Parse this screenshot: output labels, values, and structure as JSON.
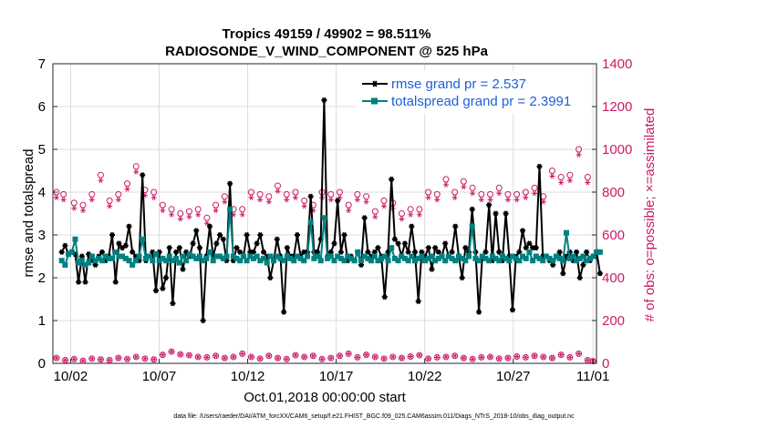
{
  "chart_data": {
    "type": "line",
    "title": "Tropics 49159 / 49902 = 98.511%",
    "subtitle": "RADIOSONDE_V_WIND_COMPONENT @ 525 hPa",
    "xlabel": "Oct.01,2018 00:00:00 start",
    "ylabel_left": "rmse and totalspread",
    "ylabel_right": "# of obs: o=possible; ×=assimilated",
    "ylim_left": [
      0,
      7
    ],
    "ylim_right": [
      0,
      1400
    ],
    "yticks_left": [
      "0",
      "1",
      "2",
      "3",
      "4",
      "5",
      "6",
      "7"
    ],
    "yticks_right": [
      "0",
      "200",
      "400",
      "600",
      "800",
      "1000",
      "1200",
      "1400"
    ],
    "xlim": [
      0.5,
      31.2
    ],
    "x_ticks": [
      {
        "x": 1.5,
        "label": "10/02"
      },
      {
        "x": 6.5,
        "label": "10/07"
      },
      {
        "x": 11.5,
        "label": "10/12"
      },
      {
        "x": 16.5,
        "label": "10/17"
      },
      {
        "x": 21.5,
        "label": "10/22"
      },
      {
        "x": 26.5,
        "label": "10/27"
      },
      {
        "x": 31.0,
        "label": "11/01"
      }
    ],
    "legend": {
      "position": "top-right",
      "entries": [
        "rmse grand pr = 2.537",
        "totalspread grand pr = 2.3991"
      ]
    },
    "colors": {
      "rmse": "#000000",
      "spread": "#008080",
      "obs": "#cc1a66",
      "legend_text": "#1f5fd6",
      "grid": "#dcdcdc"
    },
    "series": [
      {
        "name": "rmse",
        "label": "rmse grand pr = 2.537",
        "values": [
          2.6,
          2.75,
          2.55,
          2.6,
          2.55,
          1.9,
          2.5,
          1.9,
          2.55,
          2.4,
          2.3,
          2.5,
          2.6,
          2.4,
          2.5,
          3.0,
          1.9,
          2.8,
          2.7,
          2.75,
          3.2,
          2.6,
          2.5,
          2.4,
          4.4,
          2.4,
          2.5,
          2.6,
          1.7,
          2.6,
          1.75,
          2.0,
          2.7,
          1.4,
          2.6,
          2.7,
          2.2,
          2.6,
          2.5,
          2.8,
          3.1,
          2.7,
          1.0,
          2.5,
          3.2,
          2.5,
          2.8,
          3.0,
          2.9,
          2.4,
          4.2,
          2.4,
          2.7,
          2.6,
          2.5,
          3.0,
          2.6,
          2.6,
          2.8,
          3.0,
          2.6,
          2.5,
          2.0,
          2.4,
          2.9,
          2.5,
          1.2,
          2.7,
          2.5,
          2.5,
          3.0,
          2.5,
          2.6,
          2.6,
          3.9,
          2.6,
          2.6,
          2.9,
          6.15,
          2.5,
          2.6,
          2.8,
          3.8,
          2.6,
          3.0,
          2.4,
          2.5,
          2.4,
          2.6,
          2.3,
          3.4,
          2.6,
          2.5,
          2.6,
          2.7,
          2.5,
          1.55,
          2.6,
          4.3,
          2.9,
          2.8,
          2.5,
          2.8,
          2.6,
          3.2,
          2.6,
          1.45,
          2.6,
          2.5,
          2.7,
          2.2,
          2.7,
          2.6,
          2.5,
          2.8,
          2.5,
          2.6,
          3.2,
          2.5,
          2.0,
          2.7,
          2.6,
          3.6,
          2.6,
          1.2,
          2.5,
          2.6,
          3.7,
          2.4,
          3.5,
          2.6,
          2.4,
          3.5,
          2.5,
          1.25,
          2.5,
          2.6,
          3.1,
          2.7,
          2.8,
          2.7,
          2.7,
          4.6,
          2.5,
          2.5,
          2.4,
          2.3,
          2.5,
          2.6,
          2.1,
          2.5,
          2.6,
          2.4,
          2.6,
          2.0,
          2.3,
          2.6,
          2.4,
          2.5,
          2.6,
          2.1
        ]
      },
      {
        "name": "totalspread",
        "label": "totalspread grand pr = 2.3991",
        "values": [
          2.4,
          2.3,
          2.55,
          2.6,
          2.9,
          2.35,
          2.4,
          2.3,
          2.35,
          2.5,
          2.4,
          2.45,
          2.4,
          2.5,
          2.45,
          2.45,
          2.6,
          2.5,
          2.5,
          2.45,
          2.4,
          2.3,
          2.4,
          2.5,
          2.9,
          2.45,
          2.5,
          2.4,
          2.55,
          2.4,
          2.45,
          2.4,
          2.5,
          2.4,
          2.45,
          2.35,
          2.5,
          2.4,
          2.55,
          2.5,
          2.45,
          2.5,
          2.4,
          2.45,
          2.6,
          2.4,
          2.5,
          2.5,
          2.45,
          2.5,
          3.6,
          2.5,
          2.45,
          2.4,
          2.5,
          2.4,
          2.5,
          2.45,
          2.5,
          2.4,
          2.45,
          2.35,
          2.5,
          2.4,
          2.5,
          2.45,
          2.4,
          2.5,
          2.45,
          2.4,
          2.5,
          2.45,
          2.4,
          2.5,
          3.3,
          2.45,
          2.5,
          2.4,
          3.4,
          2.45,
          2.5,
          2.4,
          2.5,
          2.45,
          2.4,
          2.5,
          2.45,
          2.4,
          2.6,
          2.4,
          2.5,
          2.45,
          2.4,
          2.5,
          2.4,
          2.45,
          2.5,
          2.4,
          2.7,
          2.45,
          2.4,
          2.5,
          2.45,
          2.4,
          2.5,
          2.4,
          2.45,
          2.5,
          2.4,
          2.45,
          2.5,
          2.4,
          2.45,
          2.5,
          2.4,
          2.5,
          2.45,
          2.4,
          2.5,
          2.45,
          2.4,
          2.5,
          3.2,
          2.45,
          2.4,
          2.5,
          2.45,
          2.4,
          2.5,
          2.45,
          2.4,
          2.5,
          2.45,
          2.4,
          2.5,
          2.45,
          2.4,
          2.5,
          2.45,
          2.6,
          2.4,
          2.5,
          2.45,
          2.4,
          2.5,
          2.45,
          2.4,
          2.5,
          2.45,
          2.4,
          3.05,
          2.45,
          2.5,
          2.4,
          2.45,
          2.5,
          2.4,
          2.45,
          2.5,
          2.6,
          2.6
        ]
      }
    ],
    "obs_possible_high": [
      {
        "x": 0.7,
        "y": 800
      },
      {
        "x": 1.1,
        "y": 790
      },
      {
        "x": 1.7,
        "y": 750
      },
      {
        "x": 2.2,
        "y": 740
      },
      {
        "x": 2.7,
        "y": 790
      },
      {
        "x": 3.2,
        "y": 880
      },
      {
        "x": 3.7,
        "y": 760
      },
      {
        "x": 4.2,
        "y": 790
      },
      {
        "x": 4.7,
        "y": 840
      },
      {
        "x": 5.2,
        "y": 920
      },
      {
        "x": 5.7,
        "y": 810
      },
      {
        "x": 6.2,
        "y": 800
      },
      {
        "x": 6.7,
        "y": 740
      },
      {
        "x": 7.2,
        "y": 720
      },
      {
        "x": 7.7,
        "y": 700
      },
      {
        "x": 8.2,
        "y": 710
      },
      {
        "x": 8.7,
        "y": 720
      },
      {
        "x": 9.2,
        "y": 680
      },
      {
        "x": 9.7,
        "y": 740
      },
      {
        "x": 10.2,
        "y": 780
      },
      {
        "x": 10.7,
        "y": 720
      },
      {
        "x": 11.2,
        "y": 720
      },
      {
        "x": 11.7,
        "y": 800
      },
      {
        "x": 12.2,
        "y": 790
      },
      {
        "x": 12.7,
        "y": 780
      },
      {
        "x": 13.2,
        "y": 830
      },
      {
        "x": 13.7,
        "y": 790
      },
      {
        "x": 14.2,
        "y": 800
      },
      {
        "x": 14.7,
        "y": 760
      },
      {
        "x": 15.2,
        "y": 740
      },
      {
        "x": 15.7,
        "y": 800
      },
      {
        "x": 16.2,
        "y": 790
      },
      {
        "x": 16.7,
        "y": 800
      },
      {
        "x": 17.2,
        "y": 740
      },
      {
        "x": 17.7,
        "y": 790
      },
      {
        "x": 18.2,
        "y": 780
      },
      {
        "x": 18.7,
        "y": 710
      },
      {
        "x": 19.2,
        "y": 760
      },
      {
        "x": 19.7,
        "y": 750
      },
      {
        "x": 20.2,
        "y": 700
      },
      {
        "x": 20.7,
        "y": 720
      },
      {
        "x": 21.2,
        "y": 720
      },
      {
        "x": 21.7,
        "y": 800
      },
      {
        "x": 22.2,
        "y": 790
      },
      {
        "x": 22.7,
        "y": 860
      },
      {
        "x": 23.2,
        "y": 800
      },
      {
        "x": 23.7,
        "y": 850
      },
      {
        "x": 24.2,
        "y": 820
      },
      {
        "x": 24.7,
        "y": 790
      },
      {
        "x": 25.2,
        "y": 790
      },
      {
        "x": 25.7,
        "y": 820
      },
      {
        "x": 26.2,
        "y": 790
      },
      {
        "x": 26.7,
        "y": 790
      },
      {
        "x": 27.2,
        "y": 800
      },
      {
        "x": 27.7,
        "y": 820
      },
      {
        "x": 28.2,
        "y": 780
      },
      {
        "x": 28.7,
        "y": 900
      },
      {
        "x": 29.2,
        "y": 870
      },
      {
        "x": 29.7,
        "y": 880
      },
      {
        "x": 30.2,
        "y": 1000
      },
      {
        "x": 30.7,
        "y": 870
      }
    ],
    "obs_possible_low": [
      {
        "x": 0.7,
        "y": 25
      },
      {
        "x": 1.2,
        "y": 15
      },
      {
        "x": 1.7,
        "y": 20
      },
      {
        "x": 2.2,
        "y": 12
      },
      {
        "x": 2.7,
        "y": 22
      },
      {
        "x": 3.2,
        "y": 18
      },
      {
        "x": 3.7,
        "y": 15
      },
      {
        "x": 4.2,
        "y": 25
      },
      {
        "x": 4.7,
        "y": 20
      },
      {
        "x": 5.2,
        "y": 30
      },
      {
        "x": 5.7,
        "y": 22
      },
      {
        "x": 6.2,
        "y": 18
      },
      {
        "x": 6.7,
        "y": 40
      },
      {
        "x": 7.2,
        "y": 55
      },
      {
        "x": 7.7,
        "y": 42
      },
      {
        "x": 8.2,
        "y": 38
      },
      {
        "x": 8.7,
        "y": 30
      },
      {
        "x": 9.2,
        "y": 28
      },
      {
        "x": 9.7,
        "y": 35
      },
      {
        "x": 10.2,
        "y": 25
      },
      {
        "x": 10.7,
        "y": 30
      },
      {
        "x": 11.2,
        "y": 45
      },
      {
        "x": 11.7,
        "y": 30
      },
      {
        "x": 12.2,
        "y": 22
      },
      {
        "x": 12.7,
        "y": 35
      },
      {
        "x": 13.2,
        "y": 25
      },
      {
        "x": 13.7,
        "y": 20
      },
      {
        "x": 14.2,
        "y": 38
      },
      {
        "x": 14.7,
        "y": 30
      },
      {
        "x": 15.2,
        "y": 35
      },
      {
        "x": 15.7,
        "y": 20
      },
      {
        "x": 16.2,
        "y": 25
      },
      {
        "x": 16.7,
        "y": 35
      },
      {
        "x": 17.2,
        "y": 45
      },
      {
        "x": 17.7,
        "y": 28
      },
      {
        "x": 18.2,
        "y": 40
      },
      {
        "x": 18.7,
        "y": 30
      },
      {
        "x": 19.2,
        "y": 22
      },
      {
        "x": 19.7,
        "y": 30
      },
      {
        "x": 20.2,
        "y": 25
      },
      {
        "x": 20.7,
        "y": 32
      },
      {
        "x": 21.2,
        "y": 38
      },
      {
        "x": 21.7,
        "y": 22
      },
      {
        "x": 22.2,
        "y": 28
      },
      {
        "x": 22.7,
        "y": 30
      },
      {
        "x": 23.2,
        "y": 35
      },
      {
        "x": 23.7,
        "y": 25
      },
      {
        "x": 24.2,
        "y": 20
      },
      {
        "x": 24.7,
        "y": 28
      },
      {
        "x": 25.2,
        "y": 30
      },
      {
        "x": 25.7,
        "y": 22
      },
      {
        "x": 26.2,
        "y": 25
      },
      {
        "x": 26.7,
        "y": 32
      },
      {
        "x": 27.2,
        "y": 28
      },
      {
        "x": 27.7,
        "y": 35
      },
      {
        "x": 28.2,
        "y": 30
      },
      {
        "x": 28.7,
        "y": 25
      },
      {
        "x": 29.2,
        "y": 40
      },
      {
        "x": 29.7,
        "y": 28
      },
      {
        "x": 30.2,
        "y": 45
      },
      {
        "x": 30.7,
        "y": 15
      },
      {
        "x": 31.0,
        "y": 10
      }
    ]
  },
  "footer": "data file: /Users/raeder/DAI/ATM_forcXX/CAM6_setup/f.e21.FHIST_BGC.f09_025.CAM6assim.011/Diags_NTrS_2018-10/obs_diag_output.nc"
}
